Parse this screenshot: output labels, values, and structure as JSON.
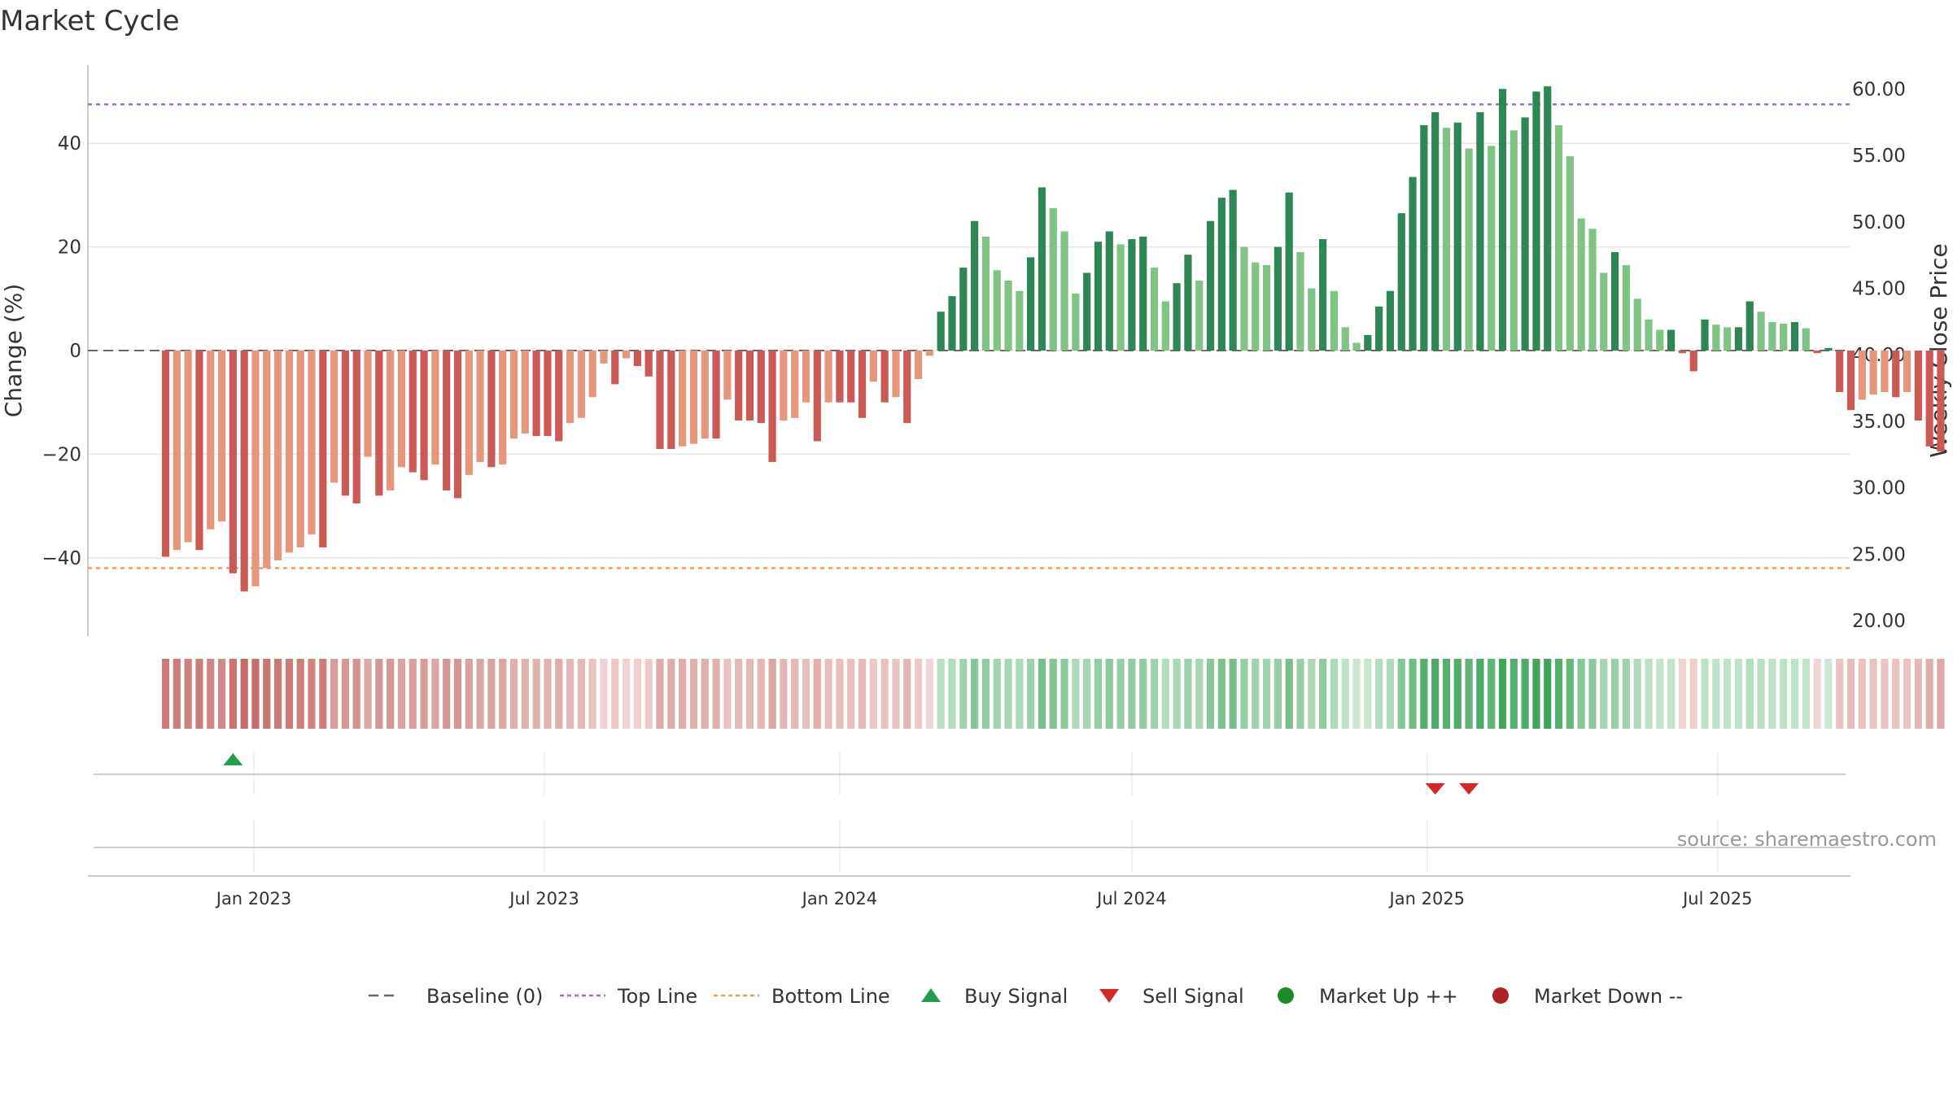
{
  "title": "Market Cycle",
  "colors": {
    "up_strong": "#2e8555",
    "up_light": "#7fc385",
    "down_strong": "#c95a56",
    "down_light": "#e4977a",
    "top_line": "#9b6fc4",
    "bottom_line": "#ef9a5a",
    "baseline": "#666666",
    "buy": "#22a04b",
    "sell": "#d62728",
    "market_up": "#1f8a2a",
    "market_down": "#b22222",
    "grid": "#e6e6e6",
    "heat_up": "#3fa45a",
    "heat_down": "#c0615e"
  },
  "source_text": "source: sharemaestro.com",
  "legend": [
    {
      "label": "Baseline (0)",
      "icon": "dash-line"
    },
    {
      "label": "Top Line",
      "icon": "dotted-line-purple"
    },
    {
      "label": "Bottom Line",
      "icon": "dotted-line-orange"
    },
    {
      "label": "Buy Signal",
      "icon": "triangle-up"
    },
    {
      "label": "Sell Signal",
      "icon": "triangle-down"
    },
    {
      "label": "Market Up ++",
      "icon": "circle-green"
    },
    {
      "label": "Market Down --",
      "icon": "circle-red"
    }
  ],
  "chart_data": {
    "type": "bar",
    "title": "Market Cycle",
    "ylabel": "Change (%)",
    "y2label": "Weekly Close Price",
    "ylim": [
      -55,
      55
    ],
    "y2lim": [
      20,
      62
    ],
    "yticks": [
      -40,
      -20,
      0,
      20,
      40
    ],
    "y2ticks": [
      "20.00",
      "25.00",
      "30.00",
      "35.00",
      "40.00",
      "45.00",
      "50.00",
      "55.00",
      "60.00"
    ],
    "top_line": 47.5,
    "bottom_line": -42,
    "baseline": 0,
    "x_start": "2022-11-07",
    "x_step_days": 7,
    "xticks": [
      {
        "label": "Jan 2023",
        "date": "2023-01-01"
      },
      {
        "label": "Jul 2023",
        "date": "2023-07-01"
      },
      {
        "label": "Jan 2024",
        "date": "2024-01-01"
      },
      {
        "label": "Jul 2024",
        "date": "2024-07-01"
      },
      {
        "label": "Jan 2025",
        "date": "2025-01-01"
      },
      {
        "label": "Jul 2025",
        "date": "2025-07-01"
      }
    ],
    "values": [
      -39.8,
      -38.5,
      -37,
      -38.5,
      -34.5,
      -33,
      -43,
      -46.5,
      -45.5,
      -42,
      -40.5,
      -39,
      -38,
      -35.5,
      -38,
      -25.5,
      -28,
      -29.5,
      -20.5,
      -28,
      -27,
      -22.5,
      -23.5,
      -25,
      -22,
      -27,
      -28.5,
      -24,
      -21.5,
      -22.5,
      -22,
      -17,
      -16,
      -16.5,
      -16.5,
      -17.5,
      -14,
      -13,
      -9,
      -2.5,
      -6.5,
      -1.5,
      -3,
      -5,
      -19,
      -19,
      -18.5,
      -18,
      -17,
      -17,
      -9.5,
      -13.5,
      -13.5,
      -14,
      -21.5,
      -13.5,
      -13,
      -10,
      -17.5,
      -10,
      -10,
      -10,
      -13,
      -6,
      -10,
      -9,
      -14,
      -5.5,
      -1,
      7.5,
      10.5,
      16,
      25,
      22,
      15.5,
      13.5,
      11.5,
      18,
      31.5,
      27.5,
      23,
      11,
      15,
      21,
      23,
      20.5,
      21.5,
      22,
      16,
      9.5,
      13,
      18.5,
      13.5,
      25,
      29.5,
      31,
      20,
      17,
      16.5,
      20,
      30.5,
      19,
      12,
      21.5,
      11.5,
      4.5,
      1.5,
      3,
      8.5,
      11.5,
      26.5,
      33.5,
      43.5,
      46,
      43,
      44,
      39,
      46,
      39.5,
      50.5,
      42.5,
      45,
      50,
      51,
      43.5,
      37.5,
      25.5,
      23.5,
      15,
      19,
      16.5,
      10,
      6,
      4,
      4,
      -0.5,
      -4,
      6,
      5,
      4.5,
      4.5,
      9.5,
      7.5,
      5.5,
      5.2,
      5.5,
      4.3,
      -0.5,
      0.5,
      -8,
      -11.5,
      -9.5,
      -8.5,
      -8,
      -9,
      -8,
      -13.5,
      -18.5,
      -19.5
    ],
    "signals": {
      "buy": [
        "2022-12-19"
      ],
      "sell": [
        "2025-01-06",
        "2025-01-27"
      ],
      "market_up": [],
      "market_down": []
    }
  }
}
